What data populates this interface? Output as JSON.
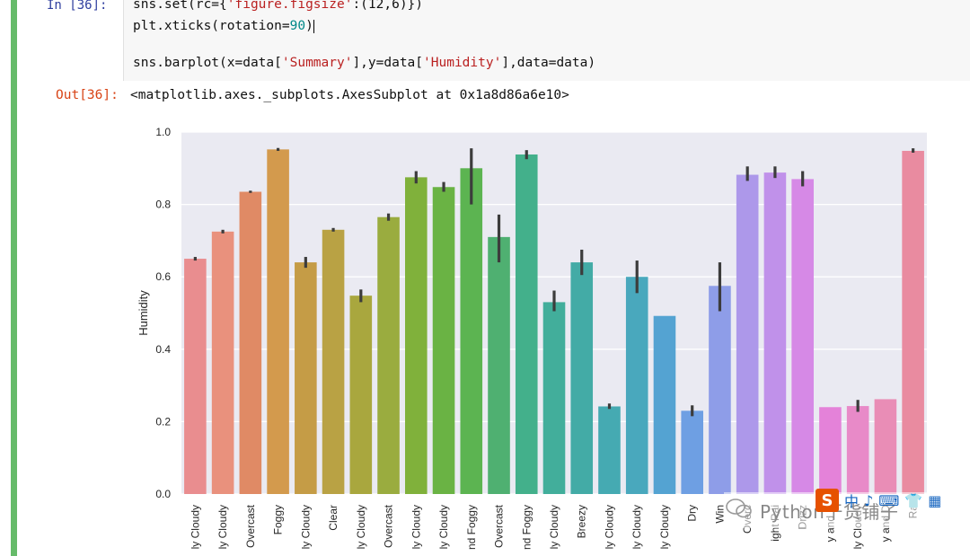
{
  "notebook": {
    "in_prompt": "In  [36]:",
    "out_prompt": "Out[36]:",
    "code": {
      "line1_a": "sns.set(rc={",
      "line1_b": "'figure.figsize'",
      "line1_c": ":(12,6)})",
      "line2_a": "plt.xticks(rotation=",
      "line2_b": "90",
      "line2_c": ")",
      "line3_a": "sns.barplot(x=data[",
      "line3_b": "'Summary'",
      "line3_c": "],y=data[",
      "line3_d": "'Humidity'",
      "line3_e": "],data=data)"
    },
    "output_text": "<matplotlib.axes._subplots.AxesSubplot at 0x1a8d86a6e10>"
  },
  "watermark": {
    "text": "Python干货铺子"
  },
  "ime_toolbar": {
    "logo_letter": "S",
    "glyph1": "中",
    "glyph2": "♪",
    "glyph3": "⌨",
    "glyph4": "👕",
    "glyph5": "▦"
  },
  "chart_data": {
    "type": "bar",
    "ylabel": "Humidity",
    "xlabel": "",
    "ylim": [
      0,
      1.0
    ],
    "yticks": [
      0.0,
      0.2,
      0.4,
      0.6,
      0.8,
      1.0
    ],
    "ytick_labels": [
      "0.0",
      "0.2",
      "0.4",
      "0.6",
      "0.8",
      "1.0"
    ],
    "grid": true,
    "categories": [
      "ly Cloudy",
      "ly Cloudy",
      "Overcast",
      "Foggy",
      "ly Cloudy",
      "Clear",
      "ly Cloudy",
      "Overcast",
      "ly Cloudy",
      "ly Cloudy",
      "nd Foggy",
      "Overcast",
      "nd Foggy",
      "ly Cloudy",
      "Breezy",
      "ly Cloudy",
      "ly Cloudy",
      "ly Cloudy",
      "Dry",
      "Win",
      "Overc",
      "ight Rai",
      "Drizz",
      "y and D",
      "ly Cloudy",
      "y and D",
      "Ra"
    ],
    "values": [
      0.65,
      0.725,
      0.835,
      0.952,
      0.64,
      0.73,
      0.548,
      0.765,
      0.875,
      0.848,
      0.9,
      0.71,
      0.938,
      0.53,
      0.64,
      0.242,
      0.6,
      0.492,
      0.23,
      0.575,
      0.882,
      0.888,
      0.87,
      0.24,
      0.243,
      0.262,
      0.948
    ],
    "ci_low": [
      0.645,
      0.72,
      0.832,
      0.948,
      0.625,
      0.725,
      0.53,
      0.755,
      0.858,
      0.835,
      0.8,
      0.64,
      0.925,
      0.505,
      0.605,
      0.235,
      0.555,
      0.492,
      0.215,
      0.505,
      0.865,
      0.873,
      0.85,
      0.24,
      0.227,
      0.262,
      0.943
    ],
    "ci_high": [
      0.655,
      0.73,
      0.838,
      0.956,
      0.655,
      0.735,
      0.565,
      0.775,
      0.892,
      0.862,
      0.955,
      0.772,
      0.95,
      0.562,
      0.675,
      0.25,
      0.645,
      0.492,
      0.245,
      0.64,
      0.905,
      0.905,
      0.892,
      0.24,
      0.26,
      0.262,
      0.955
    ],
    "colors": [
      "#e98d8f",
      "#e9917d",
      "#e08a65",
      "#d39a4d",
      "#c59c46",
      "#b9a244",
      "#a9a73e",
      "#9aac3f",
      "#80b13b",
      "#6ab344",
      "#5cb451",
      "#4fb071",
      "#43b08b",
      "#42ae9b",
      "#43aba6",
      "#45aab2",
      "#49a8bd",
      "#54a3d2",
      "#6e9fe3",
      "#8e9de8",
      "#ad98ea",
      "#c091ea",
      "#d689e6",
      "#e482d9",
      "#e88ac8",
      "#e98db6",
      "#e98ba0"
    ]
  }
}
